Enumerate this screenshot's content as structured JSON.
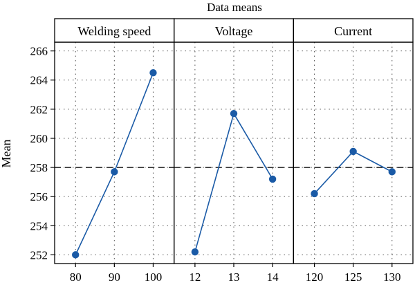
{
  "chart_data": {
    "type": "line",
    "title": "Data means",
    "ylabel": "Mean",
    "ylim": [
      251.4,
      266.6
    ],
    "yticks": [
      252,
      254,
      256,
      258,
      260,
      262,
      264,
      266
    ],
    "reference_line": 258,
    "grid": true,
    "line_color": "#1a5aa6",
    "panels": [
      {
        "name": "Welding speed",
        "x": [
          "80",
          "90",
          "100"
        ],
        "values": [
          252.0,
          257.7,
          264.5
        ]
      },
      {
        "name": "Voltage",
        "x": [
          "12",
          "13",
          "14"
        ],
        "values": [
          252.2,
          261.7,
          257.2
        ]
      },
      {
        "name": "Current",
        "x": [
          "120",
          "125",
          "130"
        ],
        "values": [
          256.2,
          259.1,
          257.7
        ]
      }
    ]
  }
}
